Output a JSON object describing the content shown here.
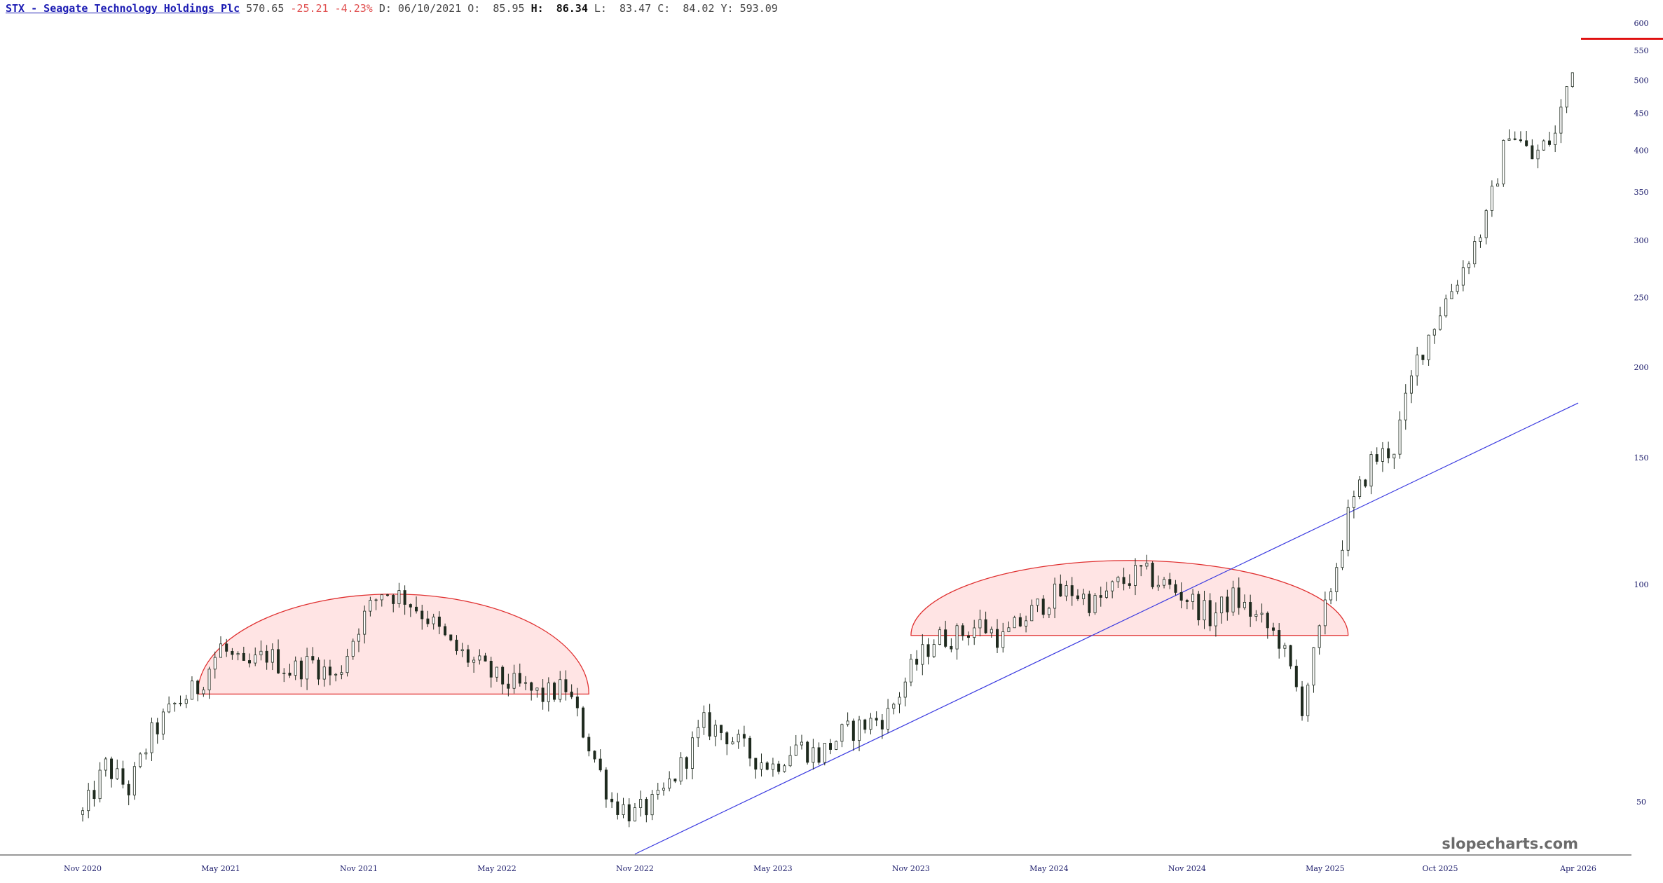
{
  "header": {
    "symbol_label": "STX - Seagate Technology Holdings Plc",
    "last": "570.65",
    "change": "-25.21",
    "change_pct": "-4.23%",
    "d_label": "D:",
    "date": "06/10/2021",
    "o_label": "O:",
    "open": "85.95",
    "h_label": "H:",
    "high": "86.34",
    "l_label": "L:",
    "low": "83.47",
    "c_label": "C:",
    "close": "84.02",
    "y_label": "Y:",
    "year_close": "593.09"
  },
  "watermark": "slopecharts.com",
  "colors": {
    "candles": "#1e2a1e",
    "trendline": "#3a3ae0",
    "pattern_stroke": "#e03030",
    "pattern_fill": "#ffe3e3",
    "price_line": "#e01010",
    "axis_text": "#1a1a6a"
  },
  "chart_data": {
    "type": "candlestick",
    "scale": "log",
    "ylim": [
      43,
      620
    ],
    "y_ticks": [
      50,
      100,
      150,
      200,
      250,
      300,
      350,
      400,
      450,
      500,
      550,
      600
    ],
    "x_ticks": [
      "Nov 2020",
      "May 2021",
      "Nov 2021",
      "May 2022",
      "Nov 2022",
      "May 2023",
      "Nov 2023",
      "May 2024",
      "Nov 2024",
      "May 2025",
      "Oct 2025",
      "Apr 2026"
    ],
    "series": [
      {
        "key": "price",
        "points": [
          [
            "Nov 2020",
            48
          ],
          [
            "Dec 2020",
            56
          ],
          [
            "Jan 2021",
            52
          ],
          [
            "Feb 2021",
            62
          ],
          [
            "Mar 2021",
            68
          ],
          [
            "Apr 2021",
            72
          ],
          [
            "May 2021",
            82
          ],
          [
            "Jun 2021",
            76
          ],
          [
            "Jul 2021",
            80
          ],
          [
            "Aug 2021",
            76
          ],
          [
            "Sep 2021",
            78
          ],
          [
            "Oct 2021",
            74
          ],
          [
            "Nov 2021",
            88
          ],
          [
            "Dec 2021",
            98
          ],
          [
            "Jan 2022",
            96
          ],
          [
            "Feb 2022",
            90
          ],
          [
            "Mar 2022",
            82
          ],
          [
            "Apr 2022",
            78
          ],
          [
            "May 2022",
            74
          ],
          [
            "Jun 2022",
            72
          ],
          [
            "Jul 2022",
            70
          ],
          [
            "Aug 2022",
            72
          ],
          [
            "Sep 2022",
            60
          ],
          [
            "Oct 2022",
            50
          ],
          [
            "Nov 2022",
            48
          ],
          [
            "Dec 2022",
            50
          ],
          [
            "Jan 2023",
            56
          ],
          [
            "Feb 2023",
            64
          ],
          [
            "Mar 2023",
            62
          ],
          [
            "Apr 2023",
            58
          ],
          [
            "May 2023",
            56
          ],
          [
            "Jun 2023",
            60
          ],
          [
            "Jul 2023",
            58
          ],
          [
            "Aug 2023",
            62
          ],
          [
            "Sep 2023",
            64
          ],
          [
            "Oct 2023",
            66
          ],
          [
            "Nov 2023",
            76
          ],
          [
            "Dec 2023",
            84
          ],
          [
            "Jan 2024",
            85
          ],
          [
            "Feb 2024",
            88
          ],
          [
            "Mar 2024",
            84
          ],
          [
            "Apr 2024",
            90
          ],
          [
            "May 2024",
            96
          ],
          [
            "Jun 2024",
            98
          ],
          [
            "Jul 2024",
            94
          ],
          [
            "Aug 2024",
            100
          ],
          [
            "Sep 2024",
            104
          ],
          [
            "Oct 2024",
            100
          ],
          [
            "Nov 2024",
            96
          ],
          [
            "Dec 2024",
            90
          ],
          [
            "Jan 2025",
            96
          ],
          [
            "Feb 2025",
            90
          ],
          [
            "Mar 2025",
            84
          ],
          [
            "Apr 2025",
            68
          ],
          [
            "May 2025",
            92
          ],
          [
            "Jun 2025",
            124
          ],
          [
            "Jul 2025",
            148
          ],
          [
            "Aug 2025",
            155
          ],
          [
            "Sep 2025",
            205
          ],
          [
            "Oct 2025",
            240
          ],
          [
            "Nov 2025",
            275
          ],
          [
            "Dec 2025",
            320
          ],
          [
            "Jan 2026",
            430
          ],
          [
            "Feb 2026",
            390
          ],
          [
            "Mar 2026",
            420
          ],
          [
            "Apr 2026",
            570
          ]
        ]
      }
    ],
    "annotations": {
      "trendline": [
        [
          "Nov 2022",
          42.3
        ],
        [
          "Apr 2026",
          178.5
        ]
      ],
      "dome_1": {
        "from": "Apr 2021",
        "to": "Sep 2022",
        "base": 70.5,
        "top": 97
      },
      "dome_2": {
        "from": "Nov 2023",
        "to": "Jun 2025",
        "base": 85,
        "top": 108
      },
      "last_price_line": 570.65
    }
  }
}
